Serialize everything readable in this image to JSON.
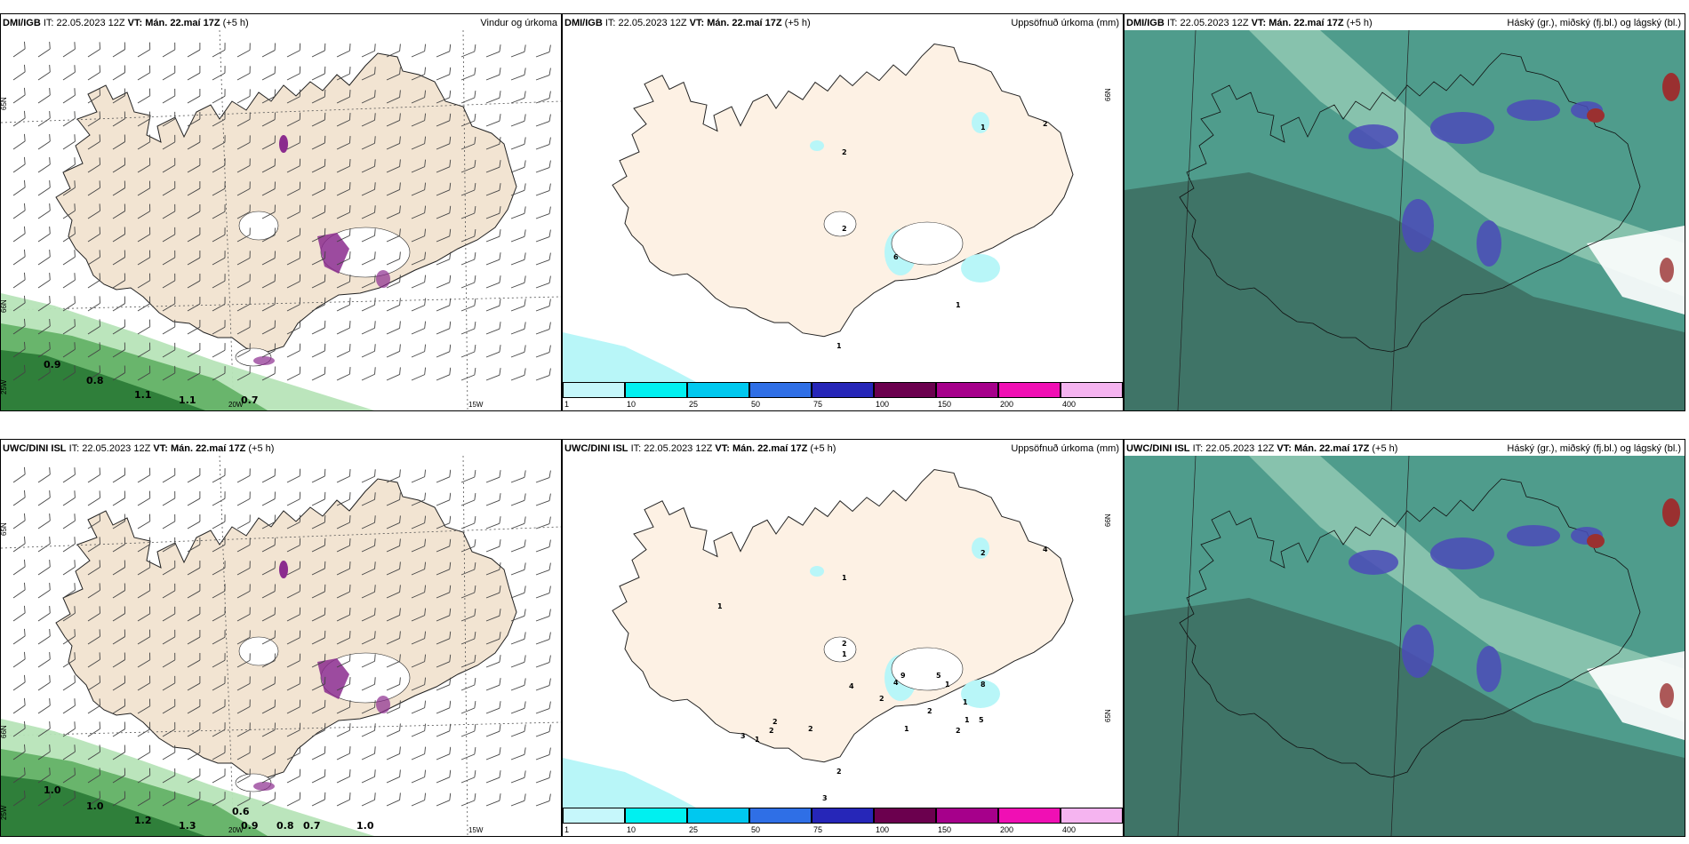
{
  "panels": [
    {
      "id": "p1",
      "model": "DMI/IGB",
      "it_label": "IT:",
      "it_value": "22.05.2023 12Z",
      "vt_label": "VT:",
      "vt_value": "Mán. 22.maí 17Z",
      "lead": "(+5 h)",
      "title": "Vindur og úrkoma",
      "type": "wind",
      "labels": [
        "0.9",
        "0.8",
        "1.1",
        "1.1",
        "0.7"
      ],
      "axis": [
        "65N",
        "66N",
        "20W",
        "15W",
        "25W"
      ]
    },
    {
      "id": "p2",
      "model": "DMI/IGB",
      "it_label": "IT:",
      "it_value": "22.05.2023 12Z",
      "vt_label": "VT:",
      "vt_value": "Mán. 22.maí 17Z",
      "lead": "(+5 h)",
      "title": "Uppsöfnuð úrkoma (mm)",
      "type": "accum",
      "labels": [
        "2",
        "2",
        "1",
        "2",
        "6",
        "1",
        "1"
      ],
      "axis": [
        "66N"
      ]
    },
    {
      "id": "p3",
      "model": "DMI/IGB",
      "it_label": "IT:",
      "it_value": "22.05.2023 12Z",
      "vt_label": "VT:",
      "vt_value": "Mán. 22.maí 17Z",
      "lead": "(+5 h)",
      "title": "Háský (gr.), miðský (fj.bl.) og lágský (bl.)",
      "type": "cloud",
      "labels": [],
      "axis": []
    },
    {
      "id": "p4",
      "model": "UWC/DINI ISL",
      "it_label": "IT:",
      "it_value": "22.05.2023 12Z",
      "vt_label": "VT:",
      "vt_value": "Mán. 22.maí 17Z",
      "lead": "(+5 h)",
      "title": "",
      "type": "wind",
      "labels": [
        "1.0",
        "1.0",
        "1.2",
        "1.3",
        "0.9",
        "0.8",
        "0.7",
        "1.0",
        "0.6"
      ],
      "axis": [
        "65N",
        "66N",
        "20W",
        "15W",
        "25W"
      ]
    },
    {
      "id": "p5",
      "model": "UWC/DINI ISL",
      "it_label": "IT:",
      "it_value": "22.05.2023 12Z",
      "vt_label": "VT:",
      "vt_value": "Mán. 22.maí 17Z",
      "lead": "(+5 h)",
      "title": "Uppsöfnuð úrkoma (mm)",
      "type": "accum",
      "labels": [
        "1",
        "1",
        "2",
        "4",
        "4",
        "2",
        "2",
        "1",
        "2",
        "8",
        "5",
        "3",
        "9",
        "5",
        "4",
        "2",
        "2",
        "1",
        "1",
        "1",
        "1",
        "2",
        "2",
        "1",
        "2",
        "3"
      ],
      "axis": [
        "66N",
        "65N"
      ]
    },
    {
      "id": "p6",
      "model": "UWC/DINI ISL",
      "it_label": "IT:",
      "it_value": "22.05.2023 12Z",
      "vt_label": "VT:",
      "vt_value": "Mán. 22.maí 17Z",
      "lead": "(+5 h)",
      "title": "Háský (gr.), miðský (fj.bl.) og lágský (bl.)",
      "type": "cloud",
      "labels": [],
      "axis": []
    }
  ],
  "colorbar": {
    "ticks": [
      "1",
      "10",
      "25",
      "50",
      "75",
      "100",
      "150",
      "200",
      "400"
    ],
    "colors": [
      "#c6f7fb",
      "#00f0f0",
      "#00c8ef",
      "#2f6fe6",
      "#2626b8",
      "#6b004e",
      "#a6008b",
      "#f00fb4",
      "#f5b4f0"
    ]
  },
  "colors": {
    "land": "#f2e4d2",
    "land_accum": "#fdf1e4",
    "cyan": "#b8f6f8",
    "green_light": "#b7e4b8",
    "green_mid": "#69b56c",
    "green_dark": "#2f7f3a",
    "purple": "#8b2c8e",
    "cloud_teal": "#4f9c8c",
    "cloud_dark": "#3b6a5e",
    "cloud_blue": "#4b4bb8",
    "cloud_red": "#9a3030"
  }
}
